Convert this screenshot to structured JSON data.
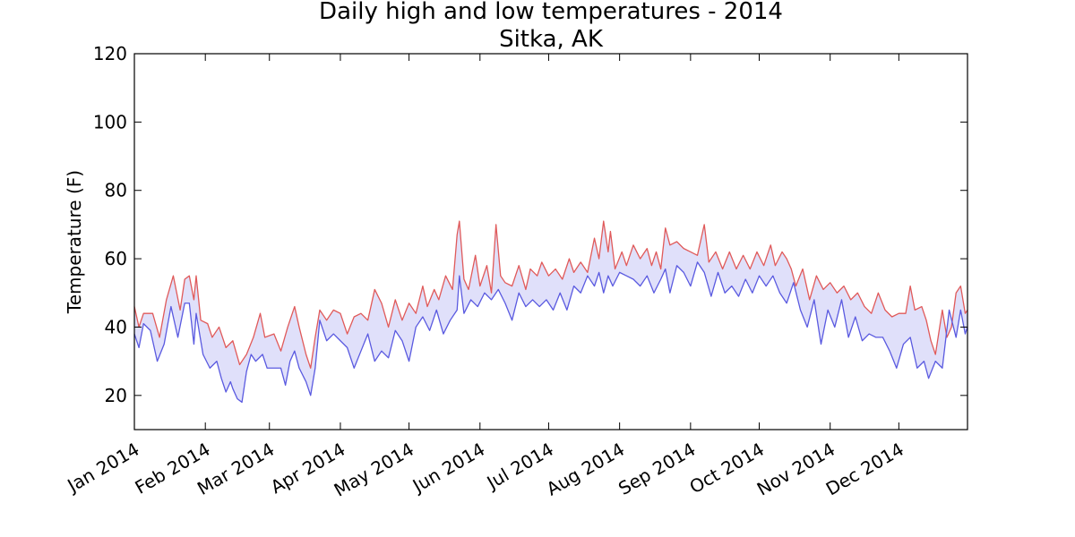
{
  "chart_data": {
    "type": "area",
    "title": "Daily high and low temperatures - 2014",
    "subtitle": "Sitka, AK",
    "xlabel": "",
    "ylabel": "Temperature (F)",
    "ylim": [
      10,
      120
    ],
    "yticks": [
      20,
      40,
      60,
      80,
      100,
      120
    ],
    "xlim": [
      "2014-01-01",
      "2014-12-31"
    ],
    "xticks": [
      {
        "date": "2014-01-01",
        "label": "Jan 2014"
      },
      {
        "date": "2014-02-01",
        "label": "Feb 2014"
      },
      {
        "date": "2014-03-01",
        "label": "Mar 2014"
      },
      {
        "date": "2014-04-01",
        "label": "Apr 2014"
      },
      {
        "date": "2014-05-01",
        "label": "May 2014"
      },
      {
        "date": "2014-06-01",
        "label": "Jun 2014"
      },
      {
        "date": "2014-07-01",
        "label": "Jul 2014"
      },
      {
        "date": "2014-08-01",
        "label": "Aug 2014"
      },
      {
        "date": "2014-09-01",
        "label": "Sep 2014"
      },
      {
        "date": "2014-10-01",
        "label": "Oct 2014"
      },
      {
        "date": "2014-11-01",
        "label": "Nov 2014"
      },
      {
        "date": "2014-12-01",
        "label": "Dec 2014"
      }
    ],
    "grid": false,
    "colors": {
      "high": "#e05a5a",
      "low": "#5a5ae0",
      "fill": "#e0e0fa"
    },
    "series": [
      {
        "key": "high",
        "points": [
          [
            "2014-01-01",
            46
          ],
          [
            "2014-01-03",
            40
          ],
          [
            "2014-01-05",
            44
          ],
          [
            "2014-01-09",
            44
          ],
          [
            "2014-01-12",
            37
          ],
          [
            "2014-01-15",
            48
          ],
          [
            "2014-01-18",
            55
          ],
          [
            "2014-01-21",
            45
          ],
          [
            "2014-01-23",
            54
          ],
          [
            "2014-01-25",
            55
          ],
          [
            "2014-01-27",
            48
          ],
          [
            "2014-01-28",
            55
          ],
          [
            "2014-01-30",
            42
          ],
          [
            "2014-02-02",
            41
          ],
          [
            "2014-02-04",
            37
          ],
          [
            "2014-02-07",
            40
          ],
          [
            "2014-02-10",
            34
          ],
          [
            "2014-02-13",
            36
          ],
          [
            "2014-02-16",
            29
          ],
          [
            "2014-02-19",
            32
          ],
          [
            "2014-02-22",
            37
          ],
          [
            "2014-02-25",
            44
          ],
          [
            "2014-02-27",
            37
          ],
          [
            "2014-03-03",
            38
          ],
          [
            "2014-03-06",
            33
          ],
          [
            "2014-03-09",
            40
          ],
          [
            "2014-03-12",
            46
          ],
          [
            "2014-03-14",
            40
          ],
          [
            "2014-03-17",
            32
          ],
          [
            "2014-03-19",
            28
          ],
          [
            "2014-03-21",
            37
          ],
          [
            "2014-03-23",
            45
          ],
          [
            "2014-03-26",
            42
          ],
          [
            "2014-03-29",
            45
          ],
          [
            "2014-04-01",
            44
          ],
          [
            "2014-04-04",
            38
          ],
          [
            "2014-04-07",
            43
          ],
          [
            "2014-04-10",
            44
          ],
          [
            "2014-04-13",
            42
          ],
          [
            "2014-04-16",
            51
          ],
          [
            "2014-04-19",
            47
          ],
          [
            "2014-04-22",
            40
          ],
          [
            "2014-04-25",
            48
          ],
          [
            "2014-04-28",
            42
          ],
          [
            "2014-05-01",
            47
          ],
          [
            "2014-05-04",
            44
          ],
          [
            "2014-05-07",
            52
          ],
          [
            "2014-05-09",
            46
          ],
          [
            "2014-05-12",
            51
          ],
          [
            "2014-05-14",
            48
          ],
          [
            "2014-05-17",
            55
          ],
          [
            "2014-05-20",
            51
          ],
          [
            "2014-05-22",
            67
          ],
          [
            "2014-05-23",
            71
          ],
          [
            "2014-05-25",
            54
          ],
          [
            "2014-05-27",
            51
          ],
          [
            "2014-05-30",
            61
          ],
          [
            "2014-06-01",
            52
          ],
          [
            "2014-06-04",
            58
          ],
          [
            "2014-06-06",
            50
          ],
          [
            "2014-06-08",
            70
          ],
          [
            "2014-06-10",
            55
          ],
          [
            "2014-06-12",
            53
          ],
          [
            "2014-06-15",
            52
          ],
          [
            "2014-06-18",
            58
          ],
          [
            "2014-06-21",
            51
          ],
          [
            "2014-06-23",
            57
          ],
          [
            "2014-06-26",
            55
          ],
          [
            "2014-06-28",
            59
          ],
          [
            "2014-07-01",
            55
          ],
          [
            "2014-07-04",
            57
          ],
          [
            "2014-07-07",
            54
          ],
          [
            "2014-07-10",
            60
          ],
          [
            "2014-07-12",
            56
          ],
          [
            "2014-07-15",
            59
          ],
          [
            "2014-07-18",
            56
          ],
          [
            "2014-07-21",
            66
          ],
          [
            "2014-07-23",
            60
          ],
          [
            "2014-07-25",
            71
          ],
          [
            "2014-07-27",
            62
          ],
          [
            "2014-07-28",
            68
          ],
          [
            "2014-07-30",
            57
          ],
          [
            "2014-08-02",
            62
          ],
          [
            "2014-08-04",
            58
          ],
          [
            "2014-08-07",
            64
          ],
          [
            "2014-08-10",
            60
          ],
          [
            "2014-08-13",
            63
          ],
          [
            "2014-08-15",
            58
          ],
          [
            "2014-08-17",
            62
          ],
          [
            "2014-08-19",
            57
          ],
          [
            "2014-08-21",
            69
          ],
          [
            "2014-08-23",
            64
          ],
          [
            "2014-08-26",
            65
          ],
          [
            "2014-08-29",
            63
          ],
          [
            "2014-09-01",
            62
          ],
          [
            "2014-09-04",
            61
          ],
          [
            "2014-09-07",
            70
          ],
          [
            "2014-09-09",
            59
          ],
          [
            "2014-09-12",
            62
          ],
          [
            "2014-09-15",
            57
          ],
          [
            "2014-09-18",
            62
          ],
          [
            "2014-09-21",
            57
          ],
          [
            "2014-09-24",
            61
          ],
          [
            "2014-09-27",
            57
          ],
          [
            "2014-09-30",
            62
          ],
          [
            "2014-10-03",
            58
          ],
          [
            "2014-10-06",
            64
          ],
          [
            "2014-10-08",
            58
          ],
          [
            "2014-10-11",
            62
          ],
          [
            "2014-10-13",
            60
          ],
          [
            "2014-10-15",
            57
          ],
          [
            "2014-10-17",
            52
          ],
          [
            "2014-10-20",
            57
          ],
          [
            "2014-10-23",
            48
          ],
          [
            "2014-10-26",
            55
          ],
          [
            "2014-10-29",
            51
          ],
          [
            "2014-11-01",
            53
          ],
          [
            "2014-11-04",
            50
          ],
          [
            "2014-11-07",
            52
          ],
          [
            "2014-11-10",
            48
          ],
          [
            "2014-11-13",
            50
          ],
          [
            "2014-11-16",
            46
          ],
          [
            "2014-11-19",
            44
          ],
          [
            "2014-11-22",
            50
          ],
          [
            "2014-11-25",
            45
          ],
          [
            "2014-11-28",
            43
          ],
          [
            "2014-12-01",
            44
          ],
          [
            "2014-12-04",
            44
          ],
          [
            "2014-12-06",
            52
          ],
          [
            "2014-12-08",
            45
          ],
          [
            "2014-12-11",
            46
          ],
          [
            "2014-12-13",
            42
          ],
          [
            "2014-12-15",
            36
          ],
          [
            "2014-12-17",
            32
          ],
          [
            "2014-12-20",
            45
          ],
          [
            "2014-12-22",
            37
          ],
          [
            "2014-12-24",
            40
          ],
          [
            "2014-12-26",
            50
          ],
          [
            "2014-12-28",
            52
          ],
          [
            "2014-12-30",
            44
          ],
          [
            "2014-12-31",
            45
          ]
        ]
      },
      {
        "key": "low",
        "points": [
          [
            "2014-01-01",
            38
          ],
          [
            "2014-01-03",
            34
          ],
          [
            "2014-01-05",
            41
          ],
          [
            "2014-01-08",
            39
          ],
          [
            "2014-01-11",
            30
          ],
          [
            "2014-01-14",
            35
          ],
          [
            "2014-01-17",
            46
          ],
          [
            "2014-01-20",
            37
          ],
          [
            "2014-01-23",
            47
          ],
          [
            "2014-01-25",
            47
          ],
          [
            "2014-01-27",
            35
          ],
          [
            "2014-01-28",
            44
          ],
          [
            "2014-01-31",
            32
          ],
          [
            "2014-02-03",
            28
          ],
          [
            "2014-02-06",
            30
          ],
          [
            "2014-02-08",
            25
          ],
          [
            "2014-02-10",
            21
          ],
          [
            "2014-02-12",
            24
          ],
          [
            "2014-02-13",
            22
          ],
          [
            "2014-02-15",
            19
          ],
          [
            "2014-02-17",
            18
          ],
          [
            "2014-02-19",
            27
          ],
          [
            "2014-02-21",
            32
          ],
          [
            "2014-02-23",
            30
          ],
          [
            "2014-02-26",
            32
          ],
          [
            "2014-02-28",
            28
          ],
          [
            "2014-03-03",
            28
          ],
          [
            "2014-03-06",
            28
          ],
          [
            "2014-03-08",
            23
          ],
          [
            "2014-03-10",
            30
          ],
          [
            "2014-03-12",
            33
          ],
          [
            "2014-03-14",
            28
          ],
          [
            "2014-03-17",
            24
          ],
          [
            "2014-03-19",
            20
          ],
          [
            "2014-03-21",
            28
          ],
          [
            "2014-03-23",
            42
          ],
          [
            "2014-03-26",
            36
          ],
          [
            "2014-03-29",
            38
          ],
          [
            "2014-04-01",
            36
          ],
          [
            "2014-04-04",
            34
          ],
          [
            "2014-04-07",
            28
          ],
          [
            "2014-04-10",
            33
          ],
          [
            "2014-04-13",
            38
          ],
          [
            "2014-04-16",
            30
          ],
          [
            "2014-04-19",
            33
          ],
          [
            "2014-04-22",
            31
          ],
          [
            "2014-04-25",
            39
          ],
          [
            "2014-04-28",
            36
          ],
          [
            "2014-05-01",
            30
          ],
          [
            "2014-05-04",
            40
          ],
          [
            "2014-05-07",
            43
          ],
          [
            "2014-05-10",
            39
          ],
          [
            "2014-05-13",
            45
          ],
          [
            "2014-05-16",
            38
          ],
          [
            "2014-05-19",
            42
          ],
          [
            "2014-05-22",
            45
          ],
          [
            "2014-05-23",
            55
          ],
          [
            "2014-05-25",
            44
          ],
          [
            "2014-05-28",
            48
          ],
          [
            "2014-05-31",
            46
          ],
          [
            "2014-06-03",
            50
          ],
          [
            "2014-06-06",
            48
          ],
          [
            "2014-06-09",
            51
          ],
          [
            "2014-06-12",
            47
          ],
          [
            "2014-06-15",
            42
          ],
          [
            "2014-06-18",
            50
          ],
          [
            "2014-06-21",
            46
          ],
          [
            "2014-06-24",
            48
          ],
          [
            "2014-06-27",
            46
          ],
          [
            "2014-06-30",
            48
          ],
          [
            "2014-07-03",
            45
          ],
          [
            "2014-07-06",
            50
          ],
          [
            "2014-07-09",
            45
          ],
          [
            "2014-07-12",
            52
          ],
          [
            "2014-07-15",
            50
          ],
          [
            "2014-07-18",
            55
          ],
          [
            "2014-07-21",
            52
          ],
          [
            "2014-07-23",
            56
          ],
          [
            "2014-07-25",
            50
          ],
          [
            "2014-07-27",
            55
          ],
          [
            "2014-07-29",
            52
          ],
          [
            "2014-08-01",
            56
          ],
          [
            "2014-08-04",
            55
          ],
          [
            "2014-08-07",
            54
          ],
          [
            "2014-08-10",
            52
          ],
          [
            "2014-08-13",
            55
          ],
          [
            "2014-08-16",
            50
          ],
          [
            "2014-08-19",
            54
          ],
          [
            "2014-08-21",
            57
          ],
          [
            "2014-08-23",
            50
          ],
          [
            "2014-08-26",
            58
          ],
          [
            "2014-08-29",
            56
          ],
          [
            "2014-09-01",
            52
          ],
          [
            "2014-09-04",
            59
          ],
          [
            "2014-09-07",
            56
          ],
          [
            "2014-09-10",
            49
          ],
          [
            "2014-09-13",
            56
          ],
          [
            "2014-09-16",
            50
          ],
          [
            "2014-09-19",
            52
          ],
          [
            "2014-09-22",
            49
          ],
          [
            "2014-09-25",
            54
          ],
          [
            "2014-09-28",
            50
          ],
          [
            "2014-10-01",
            55
          ],
          [
            "2014-10-04",
            52
          ],
          [
            "2014-10-07",
            55
          ],
          [
            "2014-10-10",
            50
          ],
          [
            "2014-10-13",
            47
          ],
          [
            "2014-10-16",
            53
          ],
          [
            "2014-10-19",
            45
          ],
          [
            "2014-10-22",
            40
          ],
          [
            "2014-10-25",
            48
          ],
          [
            "2014-10-28",
            35
          ],
          [
            "2014-10-31",
            45
          ],
          [
            "2014-11-03",
            40
          ],
          [
            "2014-11-06",
            48
          ],
          [
            "2014-11-09",
            37
          ],
          [
            "2014-11-12",
            43
          ],
          [
            "2014-11-15",
            36
          ],
          [
            "2014-11-18",
            38
          ],
          [
            "2014-11-21",
            37
          ],
          [
            "2014-11-24",
            37
          ],
          [
            "2014-11-27",
            33
          ],
          [
            "2014-11-30",
            28
          ],
          [
            "2014-12-03",
            35
          ],
          [
            "2014-12-06",
            37
          ],
          [
            "2014-12-09",
            28
          ],
          [
            "2014-12-12",
            30
          ],
          [
            "2014-12-14",
            25
          ],
          [
            "2014-12-17",
            30
          ],
          [
            "2014-12-20",
            28
          ],
          [
            "2014-12-23",
            45
          ],
          [
            "2014-12-26",
            37
          ],
          [
            "2014-12-28",
            45
          ],
          [
            "2014-12-30",
            38
          ],
          [
            "2014-12-31",
            40
          ]
        ]
      }
    ]
  }
}
